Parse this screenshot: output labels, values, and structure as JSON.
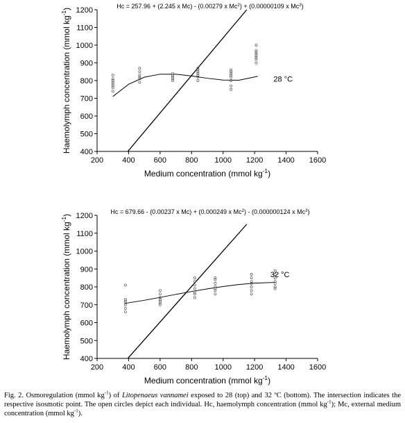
{
  "chart_data": [
    {
      "type": "scatter",
      "title": [
        {
          "text": "Hc = 257.96 + (2.245 x Mc) - (0.00279 x Mc"
        },
        {
          "text": "2",
          "sup": true
        },
        {
          "text": ") + (0.00000109 x Mc"
        },
        {
          "text": "3",
          "sup": true
        },
        {
          "text": ")"
        }
      ],
      "xlabel": [
        {
          "text": "Medium concentration (mmol kg"
        },
        {
          "text": "-1",
          "sup": true
        },
        {
          "text": ")"
        }
      ],
      "ylabel": [
        {
          "text": "Haemolymph concentration (mmol kg"
        },
        {
          "text": "-1",
          "sup": true
        },
        {
          "text": ")"
        }
      ],
      "annotation": "28 °C",
      "xlim": [
        200,
        1600
      ],
      "xticks": [
        200,
        400,
        600,
        800,
        1000,
        1200,
        1400,
        1600
      ],
      "ylim": [
        400,
        1200
      ],
      "yticks": [
        400,
        500,
        600,
        700,
        800,
        900,
        1000,
        1100,
        1200
      ],
      "points": {
        "x": [
          300,
          300,
          300,
          300,
          300,
          300,
          300,
          300,
          470,
          470,
          470,
          470,
          470,
          470,
          680,
          680,
          680,
          680,
          680,
          840,
          840,
          840,
          840,
          840,
          840,
          840,
          1050,
          1050,
          1050,
          1050,
          1050,
          1050,
          1050,
          1050,
          1210,
          1210,
          1210,
          1210,
          1210,
          1210,
          1210,
          1210
        ],
        "y": [
          740,
          760,
          770,
          780,
          790,
          800,
          810,
          830,
          790,
          810,
          820,
          830,
          850,
          870,
          800,
          810,
          820,
          830,
          840,
          800,
          820,
          830,
          840,
          850,
          860,
          870,
          750,
          770,
          800,
          820,
          830,
          840,
          850,
          860,
          900,
          920,
          930,
          940,
          950,
          960,
          970,
          1000
        ]
      },
      "fit": {
        "x": [
          300,
          400,
          500,
          600,
          700,
          800,
          900,
          1000,
          1100,
          1220
        ],
        "y": [
          710,
          779,
          819,
          836,
          836,
          826,
          813,
          803,
          802,
          824
        ]
      },
      "isosmotic": {
        "x": [
          395,
          1150
        ],
        "y": [
          400,
          1200
        ]
      }
    },
    {
      "type": "scatter",
      "title": [
        {
          "text": "Hc = 679.66 - (0.00237 x Mc) + (0.000249 x Mc"
        },
        {
          "text": "2",
          "sup": true
        },
        {
          "text": ") - (0.000000124 x Mc"
        },
        {
          "text": "3",
          "sup": true
        },
        {
          "text": ")"
        }
      ],
      "xlabel": [
        {
          "text": "Medium concentration (mmol kg"
        },
        {
          "text": "-1",
          "sup": true
        },
        {
          "text": ")"
        }
      ],
      "ylabel": [
        {
          "text": "Haemolymph concentration (mmol kg"
        },
        {
          "text": "-1",
          "sup": true
        },
        {
          "text": ")"
        }
      ],
      "annotation": "32 °C",
      "xlim": [
        200,
        1600
      ],
      "xticks": [
        200,
        400,
        600,
        800,
        1000,
        1200,
        1400,
        1600
      ],
      "ylim": [
        400,
        1200
      ],
      "yticks": [
        400,
        500,
        600,
        700,
        800,
        900,
        1000,
        1100,
        1200
      ],
      "points": {
        "x": [
          380,
          380,
          380,
          380,
          380,
          380,
          380,
          600,
          600,
          600,
          600,
          600,
          600,
          600,
          820,
          820,
          820,
          820,
          820,
          820,
          820,
          950,
          950,
          950,
          950,
          950,
          950,
          950,
          1180,
          1180,
          1180,
          1180,
          1180,
          1180,
          1180,
          1330,
          1330,
          1330,
          1330,
          1330,
          1330,
          1330
        ],
        "y": [
          660,
          680,
          700,
          710,
          720,
          730,
          810,
          700,
          710,
          720,
          730,
          740,
          760,
          780,
          740,
          760,
          770,
          790,
          810,
          830,
          850,
          760,
          780,
          790,
          800,
          820,
          840,
          850,
          760,
          780,
          800,
          820,
          830,
          850,
          870,
          790,
          800,
          820,
          830,
          850,
          870,
          890
        ]
      },
      "fit": {
        "x": [
          380,
          500,
          600,
          700,
          800,
          900,
          1000,
          1100,
          1200,
          1330
        ],
        "y": [
          708,
          725,
          741,
          758,
          774,
          789,
          802,
          813,
          821,
          825
        ]
      },
      "isosmotic": {
        "x": [
          395,
          1150
        ],
        "y": [
          400,
          1150
        ]
      }
    }
  ],
  "caption": [
    {
      "text": "Fig. 2. Osmoregulation (mmol kg"
    },
    {
      "text": "-1",
      "sup": true
    },
    {
      "text": ") of "
    },
    {
      "text": "Litopenaeus vannamei",
      "em": true
    },
    {
      "text": " exposed to 28 (top) and 32 ºC (bottom). The intersection indicates the respective isosmotic point. The open circles depict each individual. Hc, haemolymph concentration (mmol kg"
    },
    {
      "text": "-1",
      "sup": true
    },
    {
      "text": "); Mc, external medium concentration (mmol kg"
    },
    {
      "text": "-1",
      "sup": true
    },
    {
      "text": ")."
    }
  ]
}
